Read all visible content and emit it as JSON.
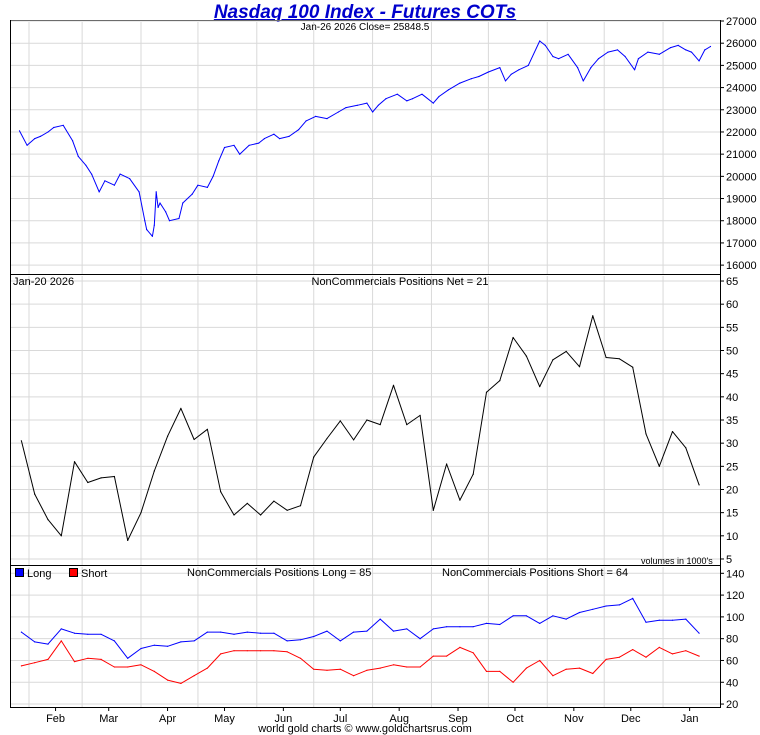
{
  "title": "Nasdaq 100 Index - Futures COTs",
  "footer": "world gold charts © www.goldchartsrus.com",
  "colors": {
    "price": "#0000ff",
    "net": "#000000",
    "long": "#0000ff",
    "short": "#ff0000",
    "grid": "#d9d9d9"
  },
  "panels": {
    "price": {
      "header": "Jan-26  2026   Close= 25848.5"
    },
    "net": {
      "date_label": "Jan-20  2026",
      "header": "NonCommercials Positions Net = 21",
      "volume_note": "volumes in 1000's"
    },
    "longshort": {
      "legend_long": "Long",
      "legend_short": "Short",
      "header_long": "NonCommercials Positions Long = 85",
      "header_short": "NonCommercials Positions Short = 64"
    }
  },
  "chart_data": [
    {
      "type": "line",
      "title": "Nasdaq 100 Index - Futures COTs",
      "subtitle": "Jan-26  2026   Close= 25848.5",
      "ylim": [
        15600,
        27000
      ],
      "yticks": [
        16000,
        17000,
        18000,
        19000,
        20000,
        21000,
        22000,
        23000,
        24000,
        25000,
        26000,
        27000
      ],
      "xticklabels": [
        "Feb",
        "Mar",
        "Apr",
        "May",
        "Jun",
        "Jul",
        "Aug",
        "Sep",
        "Oct",
        "Nov",
        "Dec",
        "Jan"
      ],
      "grid": true,
      "x": [
        "2025-01-27",
        "2025-01-31",
        "2025-02-04",
        "2025-02-07",
        "2025-02-11",
        "2025-02-14",
        "2025-02-19",
        "2025-02-24",
        "2025-02-27",
        "2025-03-03",
        "2025-03-06",
        "2025-03-10",
        "2025-03-13",
        "2025-03-18",
        "2025-03-21",
        "2025-03-26",
        "2025-03-31",
        "2025-04-03",
        "2025-04-04",
        "2025-04-07",
        "2025-04-08",
        "2025-04-09",
        "2025-04-10",
        "2025-04-11",
        "2025-04-14",
        "2025-04-16",
        "2025-04-21",
        "2025-04-23",
        "2025-04-28",
        "2025-05-01",
        "2025-05-06",
        "2025-05-09",
        "2025-05-12",
        "2025-05-15",
        "2025-05-20",
        "2025-05-23",
        "2025-05-28",
        "2025-06-02",
        "2025-06-05",
        "2025-06-10",
        "2025-06-13",
        "2025-06-18",
        "2025-06-23",
        "2025-06-27",
        "2025-07-02",
        "2025-07-08",
        "2025-07-14",
        "2025-07-18",
        "2025-07-24",
        "2025-07-29",
        "2025-08-01",
        "2025-08-04",
        "2025-08-08",
        "2025-08-14",
        "2025-08-19",
        "2025-08-22",
        "2025-08-27",
        "2025-09-02",
        "2025-09-05",
        "2025-09-10",
        "2025-09-16",
        "2025-09-22",
        "2025-09-26",
        "2025-10-01",
        "2025-10-07",
        "2025-10-10",
        "2025-10-13",
        "2025-10-17",
        "2025-10-22",
        "2025-10-28",
        "2025-10-31",
        "2025-11-04",
        "2025-11-07",
        "2025-11-12",
        "2025-11-17",
        "2025-11-20",
        "2025-11-24",
        "2025-11-28",
        "2025-12-03",
        "2025-12-08",
        "2025-12-12",
        "2025-12-17",
        "2025-12-19",
        "2025-12-24",
        "2025-12-30",
        "2026-01-05",
        "2026-01-09",
        "2026-01-13",
        "2026-01-16",
        "2026-01-20",
        "2026-01-23",
        "2026-01-26"
      ],
      "series": [
        {
          "values": [
            22050,
            21400,
            21700,
            21800,
            22000,
            22200,
            22300,
            21600,
            20900,
            20500,
            20100,
            19300,
            19800,
            19600,
            20100,
            19900,
            19300,
            18000,
            17600,
            17300,
            17800,
            19300,
            18600,
            18800,
            18400,
            18000,
            18100,
            18800,
            19200,
            19600,
            19500,
            20000,
            20700,
            21300,
            21400,
            21000,
            21400,
            21500,
            21700,
            21900,
            21700,
            21800,
            22100,
            22500,
            22700,
            22600,
            22900,
            23100,
            23200,
            23300,
            22900,
            23200,
            23500,
            23700,
            23400,
            23500,
            23700,
            23300,
            23600,
            23900,
            24200,
            24400,
            24500,
            24700,
            24900,
            24300,
            24600,
            24800,
            25000,
            26100,
            25900,
            25400,
            25300,
            25500,
            24900,
            24300,
            24900,
            25300,
            25600,
            25700,
            25400,
            24800,
            25300,
            25600,
            25500,
            25800,
            25900,
            25700,
            25600,
            25200,
            25700,
            25850
          ]
        }
      ]
    },
    {
      "type": "line",
      "title": "NonCommercials Positions Net = 21",
      "subtitle": "Jan-20  2026",
      "ylim": [
        5,
        65
      ],
      "yticks": [
        5,
        10,
        15,
        20,
        25,
        30,
        35,
        40,
        45,
        50,
        55,
        60,
        65
      ],
      "xticklabels": [
        "Feb",
        "Mar",
        "Apr",
        "May",
        "Jun",
        "Jul",
        "Aug",
        "Sep",
        "Oct",
        "Nov",
        "Dec",
        "Jan"
      ],
      "note": "volumes in 1000's",
      "grid": true,
      "x": [
        "2025-01-28",
        "2025-02-04",
        "2025-02-11",
        "2025-02-18",
        "2025-02-25",
        "2025-03-04",
        "2025-03-11",
        "2025-03-18",
        "2025-03-25",
        "2025-04-01",
        "2025-04-08",
        "2025-04-15",
        "2025-04-22",
        "2025-04-29",
        "2025-05-06",
        "2025-05-13",
        "2025-05-20",
        "2025-05-27",
        "2025-06-03",
        "2025-06-10",
        "2025-06-17",
        "2025-06-24",
        "2025-07-01",
        "2025-07-08",
        "2025-07-15",
        "2025-07-22",
        "2025-07-29",
        "2025-08-05",
        "2025-08-12",
        "2025-08-19",
        "2025-08-26",
        "2025-09-02",
        "2025-09-09",
        "2025-09-16",
        "2025-09-23",
        "2025-09-30",
        "2025-10-07",
        "2025-10-14",
        "2025-10-21",
        "2025-10-28",
        "2025-11-04",
        "2025-11-11",
        "2025-11-18",
        "2025-11-25",
        "2025-12-02",
        "2025-12-09",
        "2025-12-16",
        "2025-12-23",
        "2025-12-30",
        "2026-01-06",
        "2026-01-13",
        "2026-01-20"
      ],
      "series": [
        {
          "values": [
            30.5,
            19,
            13.5,
            10,
            26,
            21.5,
            22.5,
            22.8,
            9,
            15,
            24,
            31.5,
            37.5,
            30.8,
            33,
            19.5,
            14.5,
            17,
            14.5,
            17.5,
            15.5,
            16.5,
            27,
            31,
            34.8,
            30.7,
            35,
            34,
            42.5,
            34,
            36,
            15.5,
            25.5,
            17.7,
            23.3,
            41,
            43.5,
            52.8,
            48.8,
            42.2,
            48,
            49.8,
            46.5,
            57.5,
            48.5,
            48.2,
            46.4,
            32,
            25,
            32.5,
            29,
            21
          ]
        }
      ]
    },
    {
      "type": "line",
      "title": "NonCommercials Positions Long = 85 / Short = 64",
      "ylim": [
        20,
        140
      ],
      "yticks": [
        20,
        40,
        60,
        80,
        100,
        120,
        140
      ],
      "xticklabels": [
        "Feb",
        "Mar",
        "Apr",
        "May",
        "Jun",
        "Jul",
        "Aug",
        "Sep",
        "Oct",
        "Nov",
        "Dec",
        "Jan"
      ],
      "legend": "top-left",
      "grid": true,
      "x": [
        "2025-01-28",
        "2025-02-04",
        "2025-02-11",
        "2025-02-18",
        "2025-02-25",
        "2025-03-04",
        "2025-03-11",
        "2025-03-18",
        "2025-03-25",
        "2025-04-01",
        "2025-04-08",
        "2025-04-15",
        "2025-04-22",
        "2025-04-29",
        "2025-05-06",
        "2025-05-13",
        "2025-05-20",
        "2025-05-27",
        "2025-06-03",
        "2025-06-10",
        "2025-06-17",
        "2025-06-24",
        "2025-07-01",
        "2025-07-08",
        "2025-07-15",
        "2025-07-22",
        "2025-07-29",
        "2025-08-05",
        "2025-08-12",
        "2025-08-19",
        "2025-08-26",
        "2025-09-02",
        "2025-09-09",
        "2025-09-16",
        "2025-09-23",
        "2025-09-30",
        "2025-10-07",
        "2025-10-14",
        "2025-10-21",
        "2025-10-28",
        "2025-11-04",
        "2025-11-11",
        "2025-11-18",
        "2025-11-25",
        "2025-12-02",
        "2025-12-09",
        "2025-12-16",
        "2025-12-23",
        "2025-12-30",
        "2026-01-06",
        "2026-01-13",
        "2026-01-20"
      ],
      "series": [
        {
          "name": "Long",
          "values": [
            86,
            77,
            75,
            89,
            85,
            84,
            84,
            78,
            62,
            71,
            74,
            73,
            77,
            78,
            86,
            86,
            84,
            86,
            85,
            85,
            78,
            79,
            82,
            87,
            78,
            86,
            87,
            98,
            87,
            89,
            80,
            89,
            91,
            91,
            91,
            94,
            93,
            101,
            101,
            94,
            101,
            98,
            104,
            107,
            110,
            111,
            117,
            95,
            97,
            97,
            98,
            85
          ]
        },
        {
          "name": "Short",
          "values": [
            55,
            58,
            61,
            78,
            59,
            62,
            61,
            54,
            54,
            56,
            50,
            42,
            39,
            46,
            53,
            66,
            69,
            69,
            69,
            69,
            68,
            62,
            52,
            51,
            52,
            46,
            51,
            53,
            56,
            54,
            54,
            64,
            64,
            72,
            67,
            50,
            50,
            40,
            53,
            60,
            46,
            52,
            53,
            48,
            61,
            63,
            70,
            63,
            72,
            66,
            69,
            64
          ]
        }
      ]
    }
  ]
}
